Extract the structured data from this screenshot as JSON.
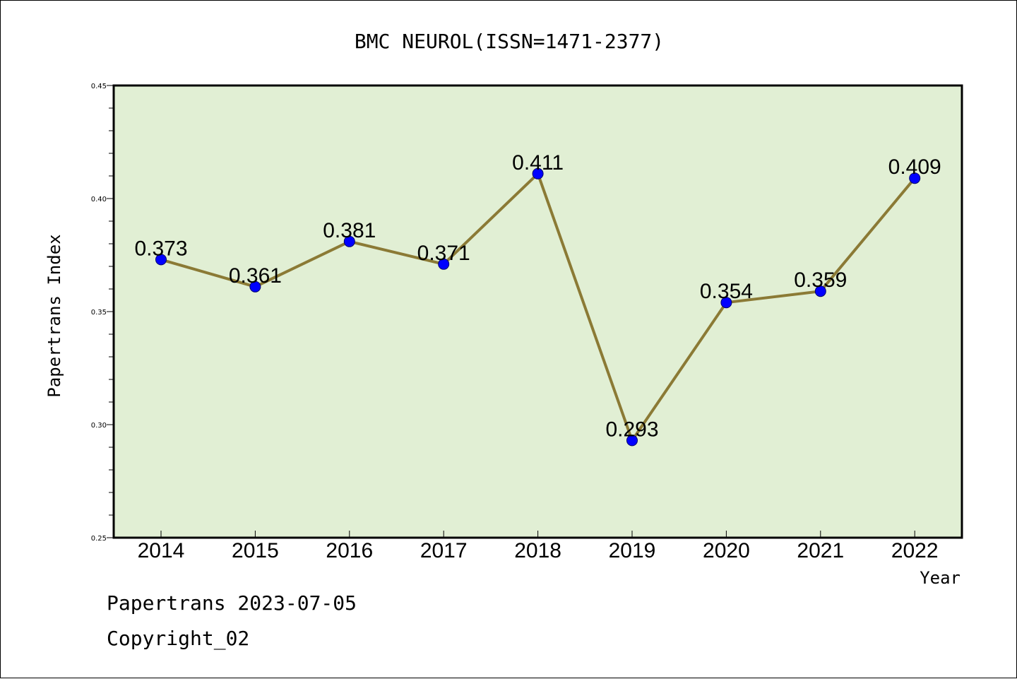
{
  "chart_data": {
    "type": "line",
    "title": "BMC NEUROL(ISSN=1471-2377)",
    "xlabel": "Year",
    "ylabel": "Papertrans Index",
    "categories": [
      "2014",
      "2015",
      "2016",
      "2017",
      "2018",
      "2019",
      "2020",
      "2021",
      "2022"
    ],
    "series": [
      {
        "values": [
          0.373,
          0.361,
          0.381,
          0.371,
          0.411,
          0.293,
          0.354,
          0.359,
          0.409
        ]
      }
    ],
    "data_labels": [
      "0.373",
      "0.361",
      "0.381",
      "0.371",
      "0.411",
      "0.293",
      "0.354",
      "0.359",
      "0.409"
    ],
    "ylim": [
      0.25,
      0.45
    ],
    "yticks": [
      0.25,
      0.3,
      0.35,
      0.4,
      0.45
    ],
    "ytick_labels": [
      "0.25",
      "0.30",
      "0.35",
      "0.40",
      "0.45"
    ],
    "grid": false,
    "colors": {
      "plot_background": "#e1efd4",
      "line": "#8b7a35",
      "marker": "#0000ff",
      "marker_edge": "#00006e"
    }
  },
  "footer": {
    "line1": "Papertrans 2023-07-05",
    "line2": "Copyright_02"
  }
}
